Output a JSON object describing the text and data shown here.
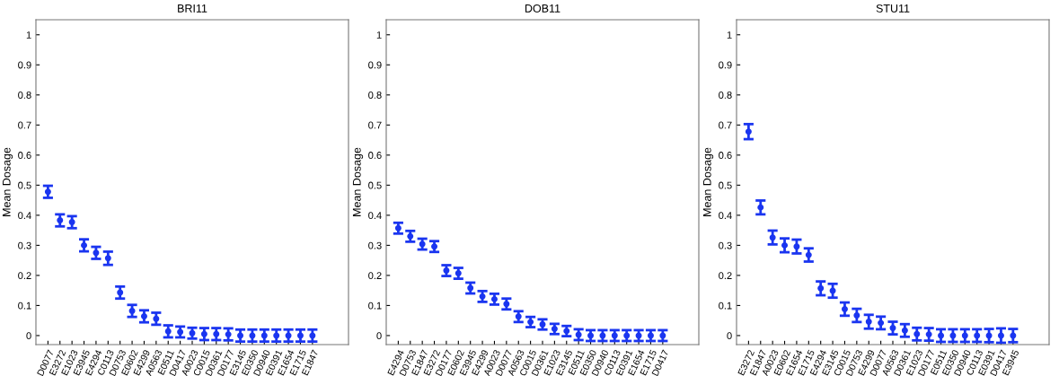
{
  "chart_data": [
    {
      "type": "scatter",
      "title": "BRI11",
      "ylabel": "Mean Dosage",
      "categories": [
        "D0077",
        "E3272",
        "E1023",
        "E3945",
        "E4294",
        "C0113",
        "D0753",
        "E0602",
        "E4299",
        "A0563",
        "E0511",
        "D0417",
        "A0023",
        "C0015",
        "D0361",
        "D0177",
        "E3145",
        "E0350",
        "D0940",
        "E0391",
        "E1654",
        "E1715",
        "E1847"
      ],
      "series": [
        {
          "color": "#1a35f0",
          "values": [
            0.478,
            0.383,
            0.377,
            0.3,
            0.275,
            0.257,
            0.143,
            0.082,
            0.064,
            0.056,
            0.014,
            0.012,
            0.008,
            0.005,
            0.005,
            0.004,
            0,
            0,
            0,
            0,
            0,
            0,
            0
          ],
          "errors": [
            0.02,
            0.02,
            0.02,
            0.02,
            0.02,
            0.022,
            0.02,
            0.02,
            0.02,
            0.02,
            0.02,
            0.018,
            0.018,
            0.02,
            0.02,
            0.02,
            0.02,
            0.02,
            0.02,
            0.02,
            0.02,
            0.02,
            0.02
          ]
        }
      ],
      "ylim": [
        -0.03,
        1.05
      ],
      "yticks": [
        0,
        0.1,
        0.2,
        0.3,
        0.4,
        0.5,
        0.6,
        0.7,
        0.8,
        0.9,
        1
      ],
      "marker": "circle",
      "grid": false
    },
    {
      "type": "scatter",
      "title": "DOB11",
      "ylabel": "Mean Dosage",
      "categories": [
        "E4294",
        "D0753",
        "E1847",
        "E3272",
        "D0177",
        "E0602",
        "E3945",
        "E4299",
        "A0023",
        "D0077",
        "A0563",
        "C0015",
        "D0361",
        "E1023",
        "E3145",
        "E0511",
        "E0350",
        "D0940",
        "C0113",
        "E0391",
        "E1654",
        "E1715",
        "D0417"
      ],
      "series": [
        {
          "color": "#1a35f0",
          "values": [
            0.357,
            0.33,
            0.304,
            0.296,
            0.216,
            0.207,
            0.158,
            0.13,
            0.121,
            0.105,
            0.063,
            0.045,
            0.037,
            0.022,
            0.015,
            0.003,
            0,
            0,
            0,
            0,
            0,
            0,
            0
          ],
          "errors": [
            0.018,
            0.018,
            0.018,
            0.018,
            0.018,
            0.018,
            0.018,
            0.018,
            0.018,
            0.018,
            0.018,
            0.017,
            0.017,
            0.017,
            0.017,
            0.018,
            0.018,
            0.018,
            0.018,
            0.018,
            0.018,
            0.018,
            0.018
          ]
        }
      ],
      "ylim": [
        -0.03,
        1.05
      ],
      "yticks": [
        0,
        0.1,
        0.2,
        0.3,
        0.4,
        0.5,
        0.6,
        0.7,
        0.8,
        0.9,
        1
      ],
      "marker": "circle",
      "grid": false
    },
    {
      "type": "scatter",
      "title": "STU11",
      "ylabel": "Mean Dosage",
      "categories": [
        "E3272",
        "E1847",
        "A0023",
        "E0602",
        "E1654",
        "E1715",
        "E4294",
        "E3145",
        "C0015",
        "D0753",
        "E4299",
        "D0077",
        "A0563",
        "D0361",
        "E1023",
        "D0177",
        "E0511",
        "E0350",
        "D0940",
        "C0113",
        "E0391",
        "D0417",
        "E3945"
      ],
      "series": [
        {
          "color": "#1a35f0",
          "values": [
            0.678,
            0.426,
            0.326,
            0.3,
            0.296,
            0.268,
            0.157,
            0.149,
            0.088,
            0.067,
            0.046,
            0.042,
            0.025,
            0.017,
            0.005,
            0.004,
            0,
            0,
            0,
            0,
            0,
            0,
            0
          ],
          "errors": [
            0.025,
            0.023,
            0.023,
            0.023,
            0.023,
            0.022,
            0.023,
            0.023,
            0.022,
            0.022,
            0.023,
            0.021,
            0.021,
            0.021,
            0.021,
            0.021,
            0.021,
            0.021,
            0.021,
            0.021,
            0.022,
            0.024,
            0.022
          ]
        }
      ],
      "ylim": [
        -0.03,
        1.05
      ],
      "yticks": [
        0,
        0.1,
        0.2,
        0.3,
        0.4,
        0.5,
        0.6,
        0.7,
        0.8,
        0.9,
        1
      ],
      "marker": "circle",
      "grid": false
    }
  ]
}
